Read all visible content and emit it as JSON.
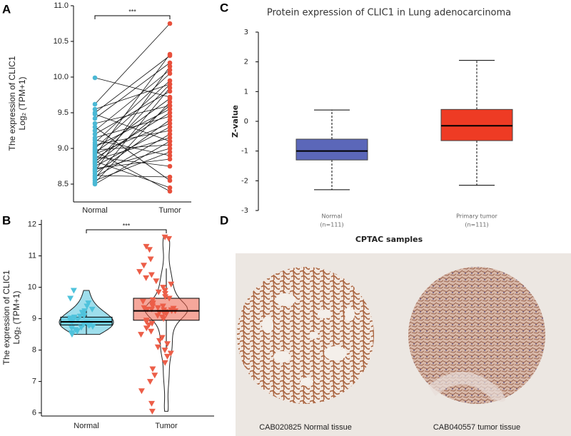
{
  "chart_data": [
    {
      "type": "paired",
      "panel": "A",
      "ylabel": [
        "The expression of CLIC1",
        "Log₂ (TPM+1)"
      ],
      "significance": "***",
      "ylim": [
        8.25,
        11.0
      ],
      "yticks": [
        8.5,
        {
          "value": 9,
          "label": "9.0"
        },
        9.5,
        {
          "value": 10,
          "label": "10.0"
        },
        10.5,
        {
          "value": 11,
          "label": "11.0"
        }
      ],
      "series": [
        {
          "name": "Normal",
          "color": "#4bb8d4",
          "values": [
            9.99,
            9.62,
            9.55,
            9.5,
            9.48,
            9.42,
            9.35,
            9.3,
            9.25,
            9.2,
            9.15,
            9.12,
            9.08,
            9.05,
            9.02,
            9.0,
            8.98,
            8.96,
            8.94,
            8.92,
            8.9,
            8.88,
            8.86,
            8.84,
            8.82,
            8.8,
            8.78,
            8.75,
            8.72,
            8.7,
            8.68,
            8.65,
            8.62,
            8.6,
            8.58,
            8.55,
            8.52,
            8.5
          ]
        },
        {
          "name": "Tumor",
          "color": "#e8503c",
          "values": [
            9.72,
            10.75,
            9.9,
            10.3,
            9.1,
            10.2,
            9.6,
            8.55,
            10.1,
            9.8,
            9.45,
            8.9,
            10.05,
            9.25,
            9.55,
            9.95,
            9.05,
            8.4,
            9.7,
            9.35,
            10.32,
            8.75,
            9.5,
            9.15,
            8.45,
            9.9,
            9.6,
            9.3,
            8.85,
            9.0,
            10.15,
            9.4,
            8.6,
            9.2,
            9.85,
            8.95,
            9.65,
            9.1
          ]
        }
      ]
    },
    {
      "type": "violin",
      "panel": "B",
      "ylabel": [
        "The expression of CLIC1",
        "Log₂ (TPM+1)"
      ],
      "significance": "***",
      "ylim": [
        5.9,
        12.15
      ],
      "yticks": [
        6,
        7,
        8,
        9,
        10,
        11,
        12
      ],
      "series": [
        {
          "name": "Normal",
          "color": "#4fc3dc",
          "box": {
            "min": 8.5,
            "q1": 8.8,
            "median": 8.9,
            "q3": 9.05,
            "max": 9.3
          },
          "values": [
            8.5,
            8.55,
            8.6,
            8.62,
            8.65,
            8.7,
            8.72,
            8.75,
            8.78,
            8.8,
            8.82,
            8.85,
            8.87,
            8.9,
            8.92,
            8.95,
            8.97,
            9.0,
            9.02,
            9.05,
            9.08,
            9.1,
            9.15,
            9.2,
            9.25,
            9.3,
            9.4,
            9.5,
            9.65,
            9.9
          ]
        },
        {
          "name": "Tumor",
          "color": "#ec5e48",
          "box": {
            "min": 8.0,
            "q1": 8.95,
            "median": 9.25,
            "q3": 9.65,
            "max": 10.6
          },
          "values": [
            11.6,
            11.55,
            11.3,
            11.2,
            10.9,
            10.7,
            10.5,
            10.4,
            10.3,
            10.2,
            10.1,
            10.0,
            9.9,
            9.85,
            9.8,
            9.7,
            9.65,
            9.6,
            9.55,
            9.5,
            9.45,
            9.4,
            9.35,
            9.3,
            9.28,
            9.25,
            9.22,
            9.2,
            9.15,
            9.1,
            9.05,
            9.0,
            8.95,
            8.9,
            8.85,
            8.8,
            8.7,
            8.6,
            8.5,
            8.4,
            8.3,
            8.2,
            8.1,
            8.0,
            7.9,
            7.8,
            7.6,
            7.4,
            7.2,
            7.0,
            6.7,
            6.3,
            6.05,
            9.3,
            9.25,
            9.35,
            9.2,
            9.4,
            9.28,
            9.33
          ]
        }
      ]
    },
    {
      "type": "box",
      "panel": "C",
      "title": "Protein expression of CLIC1 in Lung adenocarcinoma",
      "ylabel": "Z-value",
      "xlabel": "CPTAC samples",
      "ylim": [
        -3,
        3
      ],
      "yticks": [
        -3,
        -2,
        -1,
        0,
        1,
        2,
        3
      ],
      "categories": [
        "Normal",
        "Primary tumor"
      ],
      "sample_sizes": [
        "(n=111)",
        "(n=111)"
      ],
      "boxes": [
        {
          "color": "#5b67b9",
          "min": -2.3,
          "q1": -1.3,
          "median": -1.0,
          "q3": -0.6,
          "max": 0.38
        },
        {
          "color": "#ee3b24",
          "min": -2.15,
          "q1": -0.65,
          "median": -0.15,
          "q3": 0.4,
          "max": 2.05
        }
      ]
    }
  ],
  "images": {
    "panel": "D",
    "captions": [
      "CAB020825 Normal tissue",
      "CAB040557 tumor tissue"
    ]
  }
}
